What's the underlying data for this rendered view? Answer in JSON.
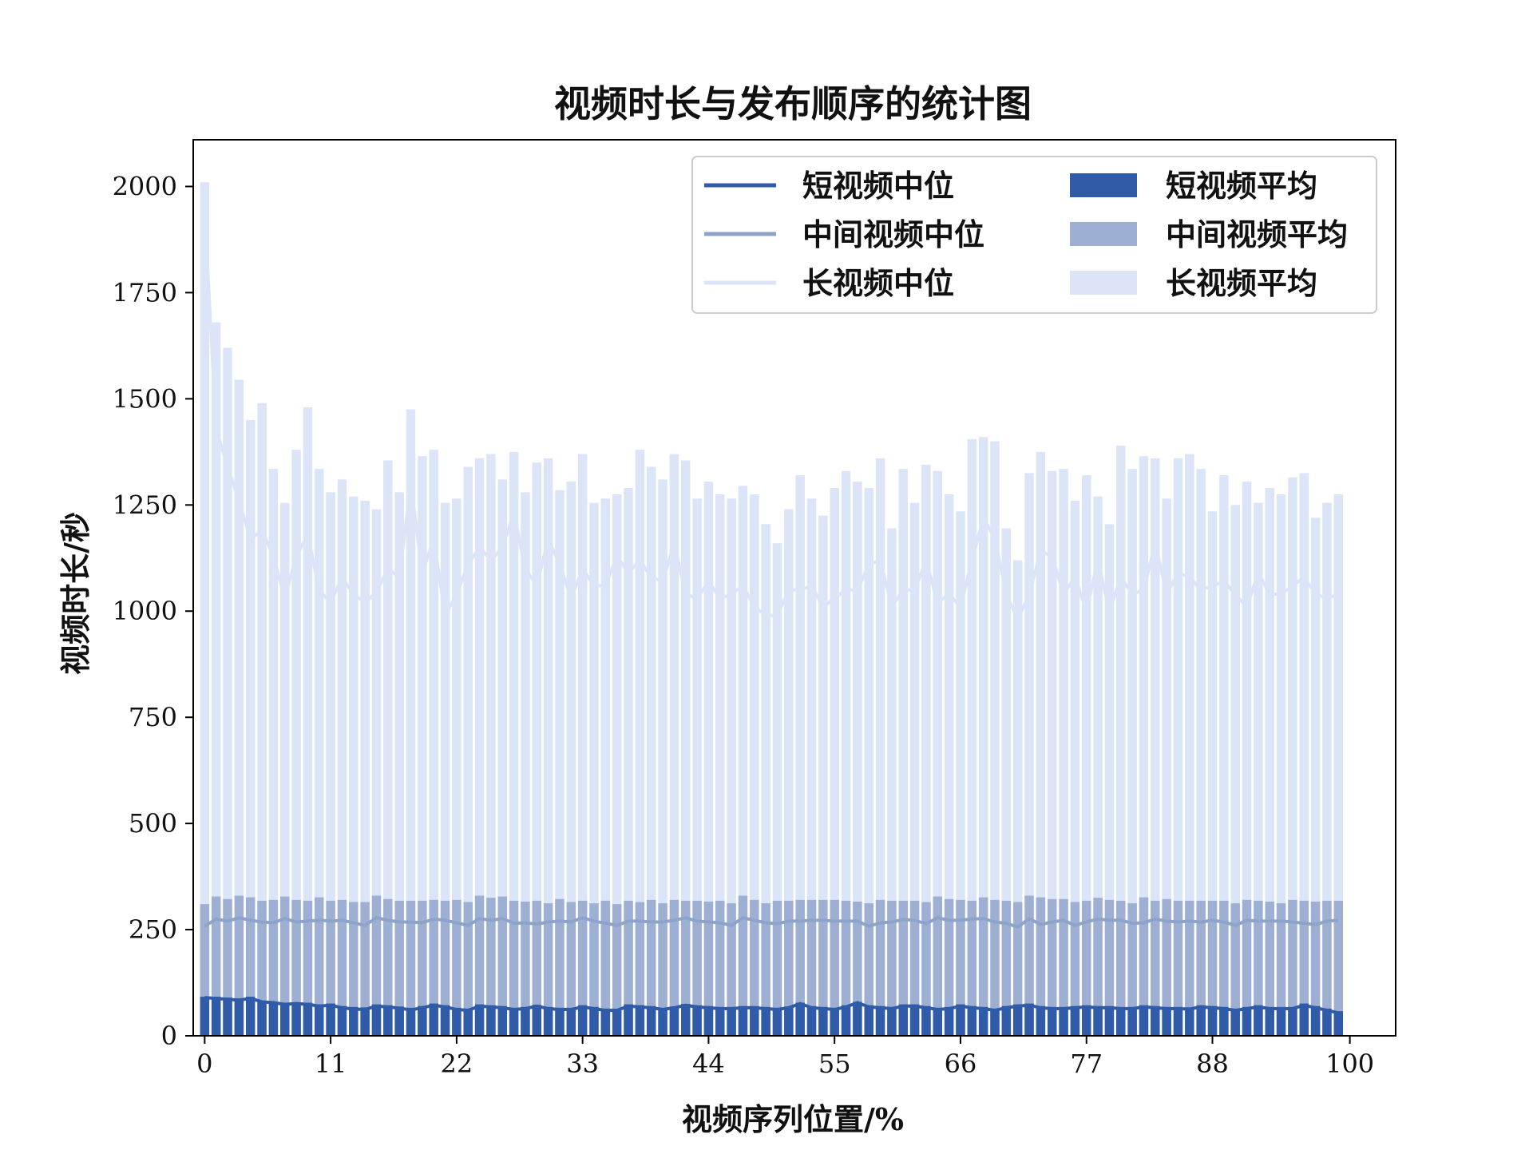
{
  "chart_data": {
    "type": "bar",
    "title": "视频时长与发布顺序的统计图",
    "xlabel": "视频序列位置/%",
    "ylabel": "视频时长/秒",
    "xlim": [
      -1,
      104
    ],
    "ylim": [
      0,
      2110
    ],
    "xticks": [
      0,
      11,
      22,
      33,
      44,
      55,
      66,
      77,
      88,
      100
    ],
    "yticks": [
      0,
      250,
      500,
      750,
      1000,
      1250,
      1500,
      1750,
      2000
    ],
    "legend_position": "upper-right",
    "legend_columns": 2,
    "grid": false,
    "colors": {
      "short": "#2f5ba8",
      "middle": "#9db0d4",
      "long": "#dbe5f7",
      "middle_line": "#8ea3c9",
      "long_line": "#dbe5f7",
      "frame": "#000000"
    },
    "x": [
      0,
      1,
      2,
      3,
      4,
      5,
      6,
      7,
      8,
      9,
      10,
      11,
      12,
      13,
      14,
      15,
      16,
      17,
      18,
      19,
      20,
      21,
      22,
      23,
      24,
      25,
      26,
      27,
      28,
      29,
      30,
      31,
      32,
      33,
      34,
      35,
      36,
      37,
      38,
      39,
      40,
      41,
      42,
      43,
      44,
      45,
      46,
      47,
      48,
      49,
      50,
      51,
      52,
      53,
      54,
      55,
      56,
      57,
      58,
      59,
      60,
      61,
      62,
      63,
      64,
      65,
      66,
      67,
      68,
      69,
      70,
      71,
      72,
      73,
      74,
      75,
      76,
      77,
      78,
      79,
      80,
      81,
      82,
      83,
      84,
      85,
      86,
      87,
      88,
      89,
      90,
      91,
      92,
      93,
      94,
      95,
      96,
      97,
      98,
      99
    ],
    "series": [
      {
        "name": "长视频平均",
        "kind": "bar",
        "values": [
          2010,
          1680,
          1620,
          1545,
          1450,
          1490,
          1335,
          1255,
          1380,
          1480,
          1335,
          1280,
          1310,
          1270,
          1260,
          1240,
          1355,
          1280,
          1475,
          1365,
          1380,
          1255,
          1265,
          1340,
          1360,
          1370,
          1310,
          1375,
          1280,
          1350,
          1360,
          1285,
          1305,
          1370,
          1255,
          1265,
          1275,
          1290,
          1380,
          1340,
          1310,
          1370,
          1355,
          1265,
          1305,
          1275,
          1265,
          1295,
          1275,
          1205,
          1160,
          1240,
          1320,
          1265,
          1225,
          1290,
          1330,
          1305,
          1290,
          1360,
          1195,
          1335,
          1255,
          1345,
          1330,
          1275,
          1235,
          1405,
          1410,
          1400,
          1195,
          1120,
          1325,
          1375,
          1330,
          1335,
          1260,
          1320,
          1270,
          1205,
          1390,
          1335,
          1365,
          1360,
          1265,
          1360,
          1370,
          1335,
          1235,
          1320,
          1250,
          1305,
          1255,
          1290,
          1275,
          1315,
          1325,
          1220,
          1255,
          1275
        ]
      },
      {
        "name": "中间视频平均",
        "kind": "bar",
        "values": [
          310,
          328,
          322,
          330,
          326,
          318,
          320,
          328,
          320,
          318,
          326,
          318,
          320,
          315,
          315,
          330,
          322,
          318,
          318,
          318,
          320,
          318,
          320,
          315,
          330,
          325,
          328,
          318,
          316,
          318,
          312,
          322,
          315,
          318,
          312,
          318,
          310,
          318,
          315,
          320,
          312,
          320,
          318,
          318,
          316,
          318,
          312,
          330,
          320,
          312,
          318,
          318,
          320,
          320,
          320,
          320,
          318,
          316,
          312,
          320,
          318,
          318,
          318,
          315,
          328,
          322,
          320,
          318,
          326,
          320,
          318,
          315,
          330,
          326,
          322,
          322,
          315,
          318,
          325,
          320,
          318,
          312,
          326,
          318,
          322,
          318,
          318,
          318,
          318,
          318,
          312,
          320,
          318,
          316,
          312,
          320,
          318,
          316,
          318,
          318
        ]
      },
      {
        "name": "短视频平均",
        "kind": "bar",
        "values": [
          92,
          92,
          90,
          88,
          92,
          82,
          80,
          78,
          79,
          78,
          74,
          76,
          70,
          68,
          67,
          74,
          72,
          69,
          66,
          70,
          76,
          72,
          66,
          64,
          74,
          72,
          70,
          66,
          68,
          73,
          68,
          66,
          66,
          72,
          68,
          64,
          64,
          74,
          72,
          70,
          66,
          69,
          75,
          72,
          70,
          68,
          68,
          70,
          70,
          68,
          66,
          69,
          78,
          70,
          68,
          66,
          72,
          80,
          72,
          70,
          68,
          74,
          74,
          70,
          66,
          68,
          74,
          70,
          68,
          64,
          70,
          74,
          76,
          70,
          68,
          68,
          70,
          72,
          70,
          70,
          68,
          68,
          72,
          70,
          68,
          68,
          67,
          72,
          70,
          68,
          64,
          68,
          72,
          68,
          68,
          68,
          76,
          70,
          64,
          58
        ]
      },
      {
        "name": "长视频中位",
        "kind": "line",
        "values": [
          1940,
          1430,
          1340,
          1260,
          1170,
          1190,
          1130,
          1030,
          1130,
          1180,
          1050,
          1020,
          1080,
          1040,
          1020,
          1045,
          1100,
          1080,
          1300,
          1090,
          1170,
          990,
          1040,
          1110,
          1150,
          1120,
          1150,
          1230,
          1100,
          1060,
          1170,
          1110,
          1030,
          1100,
          1060,
          1060,
          1130,
          1090,
          1120,
          1080,
          1070,
          1160,
          1040,
          1030,
          1070,
          1030,
          1040,
          1060,
          1010,
          990,
          990,
          1050,
          1050,
          1060,
          1010,
          1030,
          1050,
          1050,
          1110,
          1120,
          1010,
          1050,
          1050,
          1120,
          1020,
          1040,
          1010,
          1120,
          1220,
          1170,
          1040,
          980,
          1040,
          1140,
          1130,
          1040,
          1080,
          1000,
          1120,
          1000,
          1080,
          1040,
          1050,
          1160,
          1040,
          1090,
          1080,
          1050,
          1060,
          1070,
          1040,
          1010,
          1090,
          1040,
          1040,
          1060,
          1080,
          1040,
          1030,
          1040
        ]
      },
      {
        "name": "中间视频中位",
        "kind": "line",
        "values": [
          258,
          275,
          270,
          278,
          272,
          268,
          266,
          276,
          268,
          270,
          272,
          270,
          272,
          266,
          260,
          278,
          272,
          268,
          268,
          266,
          275,
          272,
          266,
          260,
          276,
          272,
          276,
          265,
          266,
          263,
          268,
          270,
          268,
          278,
          270,
          265,
          260,
          270,
          270,
          268,
          268,
          272,
          278,
          270,
          268,
          266,
          260,
          278,
          272,
          266,
          264,
          270,
          270,
          272,
          272,
          270,
          270,
          270,
          258,
          266,
          268,
          274,
          272,
          264,
          278,
          272,
          272,
          275,
          276,
          268,
          265,
          256,
          276,
          262,
          268,
          272,
          260,
          268,
          275,
          272,
          272,
          265,
          266,
          275,
          270,
          268,
          270,
          268,
          272,
          268,
          260,
          272,
          270,
          270,
          270,
          268,
          265,
          262,
          270,
          272
        ]
      },
      {
        "name": "短视频中位",
        "kind": "line",
        "values": [
          90,
          88,
          86,
          84,
          88,
          80,
          78,
          74,
          76,
          74,
          70,
          72,
          66,
          63,
          62,
          70,
          68,
          65,
          61,
          66,
          72,
          68,
          62,
          60,
          70,
          68,
          66,
          62,
          64,
          70,
          64,
          62,
          62,
          68,
          64,
          60,
          60,
          70,
          68,
          66,
          62,
          66,
          72,
          68,
          66,
          64,
          64,
          66,
          66,
          64,
          62,
          66,
          76,
          66,
          64,
          62,
          68,
          78,
          68,
          66,
          64,
          70,
          70,
          66,
          62,
          64,
          70,
          66,
          64,
          60,
          66,
          70,
          72,
          66,
          64,
          64,
          66,
          68,
          66,
          66,
          64,
          64,
          68,
          66,
          64,
          64,
          63,
          68,
          66,
          64,
          60,
          64,
          68,
          64,
          64,
          64,
          72,
          66,
          60,
          54
        ]
      }
    ],
    "legend": {
      "entries": [
        {
          "label": "短视频中位",
          "kind": "line",
          "color_key": "short"
        },
        {
          "label": "中间视频中位",
          "kind": "line",
          "color_key": "middle_line"
        },
        {
          "label": "长视频中位",
          "kind": "line",
          "color_key": "long_line"
        },
        {
          "label": "短视频平均",
          "kind": "bar",
          "color_key": "short"
        },
        {
          "label": "中间视频平均",
          "kind": "bar",
          "color_key": "middle"
        },
        {
          "label": "长视频平均",
          "kind": "bar",
          "color_key": "long"
        }
      ]
    }
  }
}
